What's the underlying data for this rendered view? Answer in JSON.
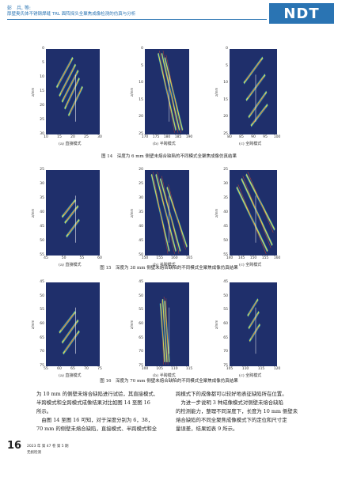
{
  "header": {
    "author": "彭　兵, 等:",
    "title": "厚壁奥氏体不锈钢焊缝 TRL 面阵探头全聚焦成像检测的仿真与分析",
    "logo": "NDT"
  },
  "figures": [
    {
      "caption": "图 14　深度为 6 mm 侧壁未熔合缺陷的不同模式全聚焦成像仿真结果",
      "panels": [
        {
          "label": "(a) 直接模式",
          "ylabel": "z/mm",
          "yticks": [
            "0",
            "5",
            "10",
            "15",
            "20",
            "25",
            "30"
          ],
          "xticks": [
            "10",
            "15",
            "20",
            "25",
            "30"
          ]
        },
        {
          "label": "(b) 半跨模式",
          "ylabel": "z/mm",
          "yticks": [
            "0",
            "5",
            "10",
            "15",
            "20",
            "25"
          ],
          "xticks": [
            "170",
            "175",
            "180",
            "185",
            "190"
          ]
        },
        {
          "label": "(c) 全跨模式",
          "ylabel": "z/mm",
          "yticks": [
            "0",
            "5",
            "10",
            "15",
            "20",
            "25"
          ],
          "xticks": [
            "80",
            "85",
            "90",
            "95",
            "100"
          ]
        }
      ]
    },
    {
      "caption": "图 15　深度为 38 mm 侧壁未熔合缺陷的不同模式全聚焦成像仿真结果",
      "panels": [
        {
          "label": "(a) 直接模式",
          "ylabel": "z/mm",
          "yticks": [
            "25",
            "30",
            "35",
            "40",
            "45",
            "50",
            "55"
          ],
          "xticks": [
            "45",
            "50",
            "55",
            "60"
          ]
        },
        {
          "label": "(b) 半跨模式",
          "ylabel": "z/mm",
          "yticks": [
            "20",
            "25",
            "30",
            "35",
            "40",
            "45",
            "50"
          ],
          "xticks": [
            "150",
            "155",
            "160",
            "165"
          ]
        },
        {
          "label": "(c) 全跨模式",
          "ylabel": "z/mm",
          "yticks": [
            "25",
            "30",
            "35",
            "40",
            "45",
            "50",
            "55"
          ],
          "xticks": [
            "140",
            "145",
            "150",
            "155",
            "160"
          ]
        }
      ]
    },
    {
      "caption": "图 16　深度为 70 mm 侧壁未熔合缺陷的不同模式全聚焦成像仿真结果",
      "panels": [
        {
          "label": "(a) 直接模式",
          "ylabel": "z/mm",
          "yticks": [
            "45",
            "50",
            "55",
            "60",
            "65",
            "70",
            "75"
          ],
          "xticks": [
            "55",
            "60",
            "65",
            "70",
            "75"
          ]
        },
        {
          "label": "(b) 半跨模式",
          "ylabel": "z/mm",
          "yticks": [
            "45",
            "50",
            "55",
            "60",
            "65",
            "70",
            "75"
          ],
          "xticks": [
            "100",
            "105",
            "110",
            "115"
          ]
        },
        {
          "label": "(c) 全跨模式",
          "ylabel": "z/mm",
          "yticks": [
            "45",
            "50",
            "55",
            "60",
            "65",
            "70",
            "75"
          ],
          "xticks": [
            "105",
            "110",
            "115",
            "120"
          ]
        }
      ]
    }
  ],
  "body": {
    "left": [
      "为 10 mm 的侧壁未熔合缺陷进行试验，其直接模式、",
      "半跨模式和全跨模式成像结果对比如图 14 至图 16",
      "所示。",
      "　由图 14 至图 16 可知，对于深度分别为 6，38，",
      "70 mm 的侧壁未熔合缺陷，直接模式、半跨模式和全"
    ],
    "right": [
      "跨模式下的成像都可以较好地表征缺陷所在位置。",
      "　为进一步说明 3 种成像模式对侧壁未熔合缺陷",
      "的检测能力，整理不同深度下，长度为 10 mm 侧壁未",
      "熔合缺陷的不同全聚焦成像模式下的定位和尺寸定",
      "量误差，结果如表 9 所示。"
    ]
  },
  "footer": {
    "page": "16",
    "issue": "2023 年 第 47 卷 第 5 期",
    "journal": "无损检测"
  }
}
